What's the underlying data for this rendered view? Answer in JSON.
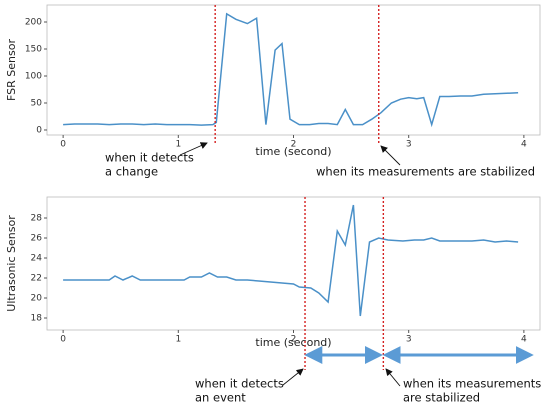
{
  "chart_data": [
    {
      "type": "line",
      "ylabel": "FSR Sensor",
      "xlabel": "time (second)",
      "xlim": [
        -0.14,
        4.14
      ],
      "xticks": [
        0,
        1,
        2,
        3,
        4
      ],
      "ylim": [
        -9.3,
        231.5
      ],
      "yticks": [
        0,
        50,
        100,
        150,
        200
      ],
      "x": [
        0,
        0.1,
        0.2,
        0.3,
        0.4,
        0.5,
        0.6,
        0.7,
        0.8,
        0.9,
        1.0,
        1.1,
        1.2,
        1.3,
        1.33,
        1.42,
        1.5,
        1.6,
        1.68,
        1.76,
        1.84,
        1.9,
        1.97,
        2.05,
        2.14,
        2.22,
        2.3,
        2.38,
        2.45,
        2.52,
        2.6,
        2.68,
        2.76,
        2.85,
        2.93,
        3.0,
        3.07,
        3.13,
        3.2,
        3.27,
        3.35,
        3.45,
        3.55,
        3.65,
        3.75,
        3.85,
        3.95
      ],
      "series": [
        {
          "color": "#4a90c8",
          "values": [
            10,
            11,
            11,
            11,
            10,
            11,
            11,
            10,
            11,
            10,
            10,
            10,
            9,
            10,
            14,
            215,
            205,
            197,
            207,
            10,
            148,
            160,
            20,
            10,
            10,
            12,
            12,
            10,
            38,
            10,
            10,
            20,
            32,
            50,
            57,
            60,
            58,
            60,
            10,
            62,
            62,
            63,
            63,
            66,
            67,
            68,
            69
          ]
        }
      ],
      "vlines": [
        1.32,
        2.74
      ],
      "vline_color": "#d42020",
      "annotations": [
        {
          "text": [
            "when it detects",
            "a change"
          ]
        },
        {
          "text": [
            "when its measurements are stabilized"
          ]
        }
      ]
    },
    {
      "type": "line",
      "ylabel": "Ultrasonic Sensor",
      "xlabel": "time (second)",
      "xlim": [
        -0.14,
        4.14
      ],
      "xticks": [
        0,
        1,
        2,
        3,
        4
      ],
      "ylim": [
        16.8,
        30.1
      ],
      "yticks": [
        18,
        20,
        22,
        24,
        26,
        28
      ],
      "x": [
        0,
        0.1,
        0.2,
        0.3,
        0.4,
        0.45,
        0.52,
        0.6,
        0.67,
        0.75,
        0.85,
        0.95,
        1.05,
        1.1,
        1.2,
        1.27,
        1.34,
        1.42,
        1.5,
        1.6,
        1.7,
        1.8,
        1.9,
        2.0,
        2.05,
        2.15,
        2.22,
        2.3,
        2.38,
        2.45,
        2.52,
        2.58,
        2.66,
        2.74,
        2.82,
        2.95,
        3.05,
        3.13,
        3.2,
        3.27,
        3.4,
        3.55,
        3.65,
        3.75,
        3.85,
        3.95
      ],
      "series": [
        {
          "color": "#4a90c8",
          "values": [
            21.8,
            21.8,
            21.8,
            21.8,
            21.8,
            22.2,
            21.8,
            22.2,
            21.8,
            21.8,
            21.8,
            21.8,
            21.8,
            22.1,
            22.1,
            22.5,
            22.1,
            22.1,
            21.8,
            21.8,
            21.7,
            21.6,
            21.5,
            21.4,
            21.1,
            21.0,
            20.5,
            19.6,
            26.7,
            25.3,
            29.3,
            18.2,
            25.6,
            26.0,
            25.8,
            25.7,
            25.8,
            25.8,
            26.0,
            25.7,
            25.7,
            25.7,
            25.8,
            25.6,
            25.7,
            25.6
          ]
        }
      ],
      "vlines": [
        2.1,
        2.78
      ],
      "vline_color": "#d42020",
      "spans": [
        [
          2.12,
          2.75
        ],
        [
          2.8,
          4.06
        ]
      ],
      "span_color": "#5b9bd5",
      "annotations": [
        {
          "text": [
            "when it detects",
            "an event"
          ]
        },
        {
          "text": [
            "when its measurements",
            "are stabilized"
          ]
        }
      ]
    }
  ]
}
